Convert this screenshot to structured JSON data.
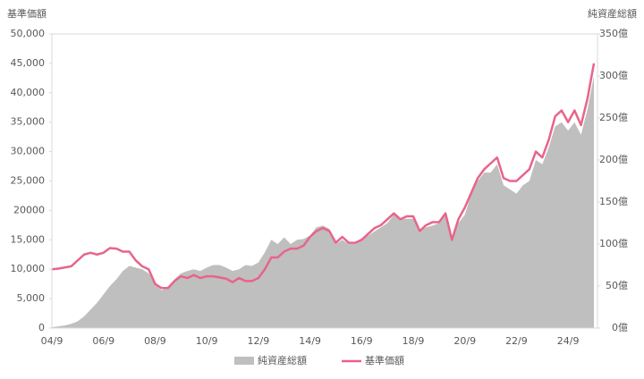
{
  "chart_data": {
    "type": "line-area",
    "ylabel": "基準価額",
    "y2label": "純資産総額",
    "categories": [
      "04/9",
      null,
      null,
      null,
      null,
      null,
      null,
      null,
      "06/9",
      null,
      null,
      null,
      null,
      null,
      null,
      null,
      "08/9",
      null,
      null,
      null,
      null,
      null,
      null,
      null,
      "10/9",
      null,
      null,
      null,
      null,
      null,
      null,
      null,
      "12/9",
      null,
      null,
      null,
      null,
      null,
      null,
      null,
      "14/9",
      null,
      null,
      null,
      null,
      null,
      null,
      null,
      "16/9",
      null,
      null,
      null,
      null,
      null,
      null,
      null,
      "18/9",
      null,
      null,
      null,
      null,
      null,
      null,
      null,
      "20/9",
      null,
      null,
      null,
      null,
      null,
      null,
      null,
      "22/9",
      null,
      null,
      null,
      null,
      null,
      null,
      null,
      "24/9",
      null,
      null,
      null,
      null
    ],
    "series": [
      {
        "name": "純資産総額",
        "color": "#bfbfbf",
        "axis": "y2",
        "kind": "area",
        "values": [
          1,
          2,
          3,
          5,
          8,
          14,
          22,
          30,
          40,
          50,
          58,
          68,
          74,
          72,
          70,
          65,
          55,
          45,
          48,
          58,
          65,
          68,
          70,
          68,
          72,
          75,
          75,
          72,
          68,
          70,
          75,
          74,
          78,
          90,
          105,
          100,
          108,
          100,
          105,
          106,
          110,
          120,
          122,
          118,
          100,
          105,
          100,
          100,
          105,
          110,
          115,
          120,
          125,
          135,
          130,
          130,
          130,
          115,
          120,
          122,
          125,
          135,
          105,
          125,
          135,
          160,
          175,
          185,
          185,
          195,
          170,
          165,
          160,
          170,
          175,
          200,
          195,
          215,
          240,
          245,
          235,
          245,
          230,
          260,
          300
        ]
      },
      {
        "name": "基準価額",
        "color": "#e8648a",
        "axis": "y",
        "kind": "line",
        "values": [
          10000,
          10100,
          10300,
          10500,
          11500,
          12500,
          12800,
          12500,
          12800,
          13600,
          13500,
          13000,
          13000,
          11500,
          10500,
          10000,
          7500,
          6800,
          6800,
          8000,
          8800,
          8500,
          9000,
          8500,
          8800,
          8800,
          8600,
          8400,
          7800,
          8500,
          8000,
          8000,
          8500,
          10000,
          12000,
          12000,
          13000,
          13500,
          13500,
          14000,
          15500,
          16500,
          17000,
          16500,
          14500,
          15500,
          14500,
          14500,
          15000,
          16000,
          17000,
          17500,
          18500,
          19500,
          18500,
          19000,
          19000,
          16500,
          17500,
          18000,
          18000,
          19500,
          15000,
          18500,
          20500,
          23000,
          25500,
          27000,
          28000,
          29000,
          25500,
          25000,
          25000,
          26000,
          27000,
          30000,
          29000,
          32000,
          36000,
          37000,
          35000,
          37000,
          34500,
          39000,
          45000
        ]
      }
    ],
    "ylim": [
      0,
      50000
    ],
    "yticks": [
      0,
      {
        "value": 5000,
        "label": "5,000"
      },
      {
        "value": 10000,
        "label": "10,000"
      },
      {
        "value": 15000,
        "label": "15,000"
      },
      {
        "value": 20000,
        "label": "20000"
      },
      {
        "value": 25000,
        "label": "25,000"
      },
      {
        "value": 30000,
        "label": "30,000"
      },
      {
        "value": 35000,
        "label": "35,000"
      },
      {
        "value": 40000,
        "label": "40,000"
      },
      {
        "value": 45000,
        "label": "45,000"
      },
      {
        "value": 50000,
        "label": "50,000"
      }
    ],
    "y2lim": [
      0,
      350
    ],
    "y2ticks": [
      {
        "value": 0,
        "label": "0億"
      },
      {
        "value": 50,
        "label": "50億"
      },
      {
        "value": 100,
        "label": "100億"
      },
      {
        "value": 150,
        "label": "150億"
      },
      {
        "value": 200,
        "label": "200億"
      },
      {
        "value": 250,
        "label": "250億"
      },
      {
        "value": 300,
        "label": "300億"
      },
      {
        "value": 350,
        "label": "350億"
      }
    ],
    "legend": "bottom"
  }
}
